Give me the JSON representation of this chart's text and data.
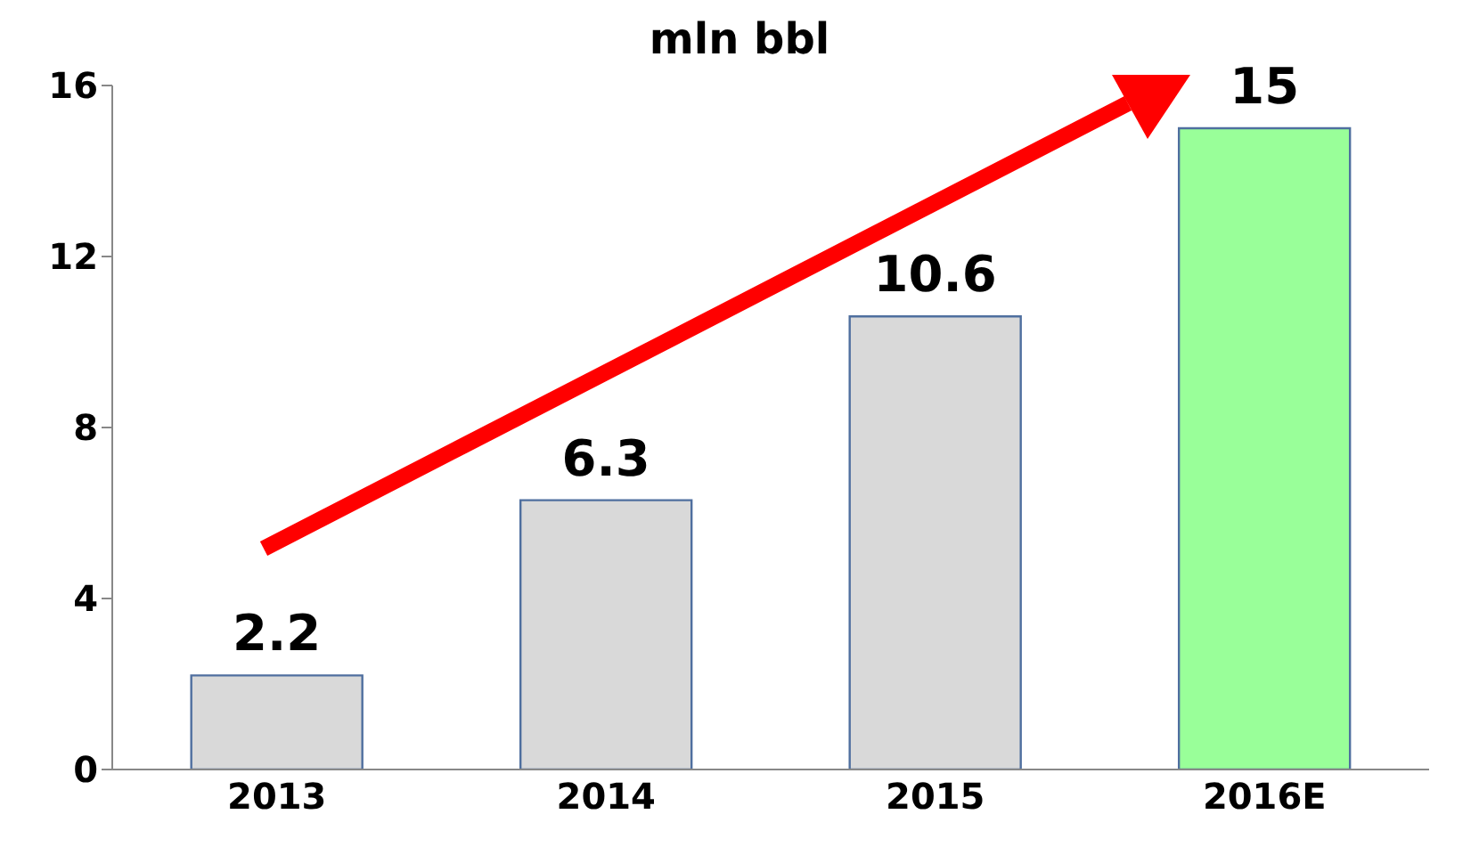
{
  "chart_data": {
    "type": "bar",
    "title": "mln bbl",
    "categories": [
      "2013",
      "2014",
      "2015",
      "2016E"
    ],
    "values": [
      2.2,
      6.3,
      10.6,
      15
    ],
    "colors": [
      "#d9d9d9",
      "#d9d9d9",
      "#d9d9d9",
      "#99ff99"
    ],
    "ylim": [
      0,
      16
    ],
    "yticks": [
      0,
      4,
      8,
      12,
      16
    ],
    "grid": false,
    "data_labels": true
  }
}
